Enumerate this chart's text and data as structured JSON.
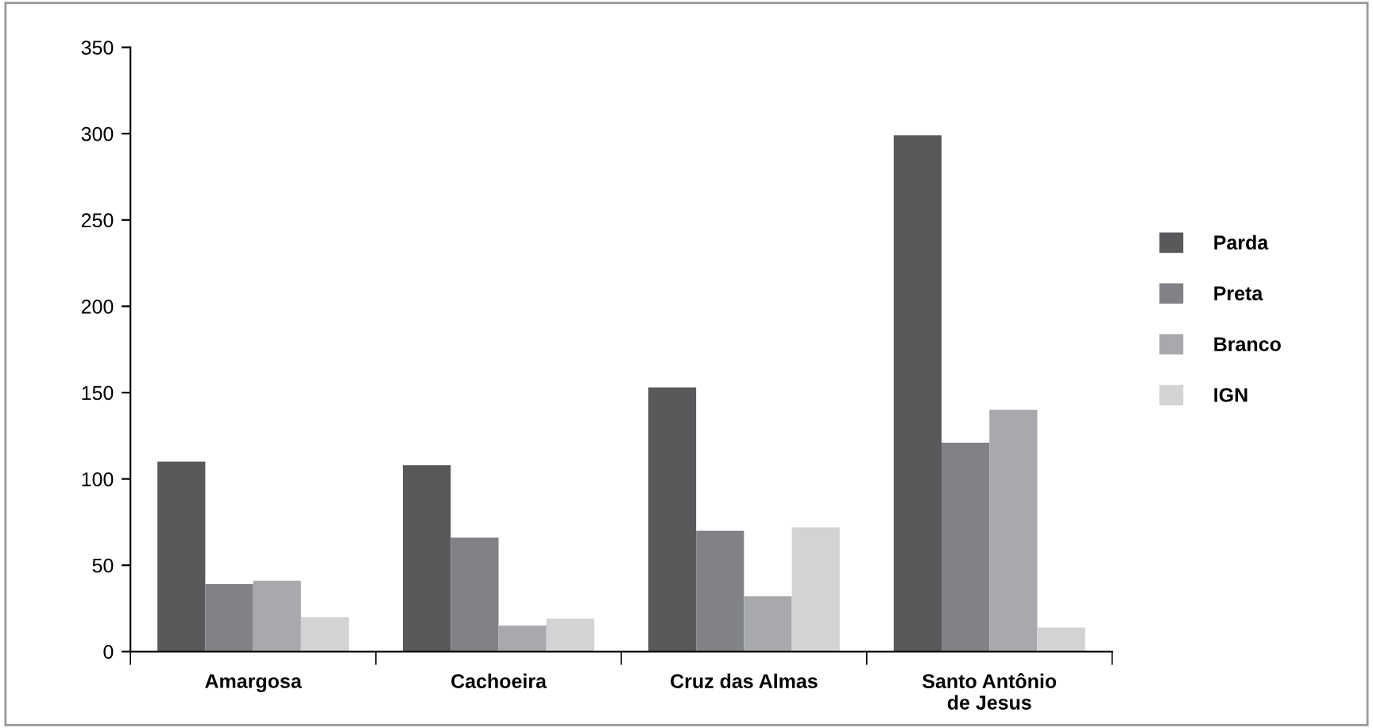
{
  "chart_data": {
    "type": "bar",
    "categories": [
      "Amargosa",
      "Cachoeira",
      "Cruz das Almas",
      "Santo Antônio\nde Jesus"
    ],
    "series": [
      {
        "name": "Parda",
        "color": "#58595b",
        "values": [
          110,
          108,
          153,
          299
        ]
      },
      {
        "name": "Preta",
        "color": "#808285",
        "values": [
          39,
          66,
          70,
          121
        ]
      },
      {
        "name": "Branco",
        "color": "#a7a9ac",
        "values": [
          41,
          15,
          32,
          140
        ]
      },
      {
        "name": "IGN",
        "color": "#d1d3d4",
        "values": [
          20,
          19,
          72,
          14
        ]
      }
    ],
    "ylim": [
      0,
      350
    ],
    "yticks": [
      0,
      50,
      100,
      150,
      200,
      250,
      300,
      350
    ],
    "grid": false,
    "legend": "right"
  }
}
